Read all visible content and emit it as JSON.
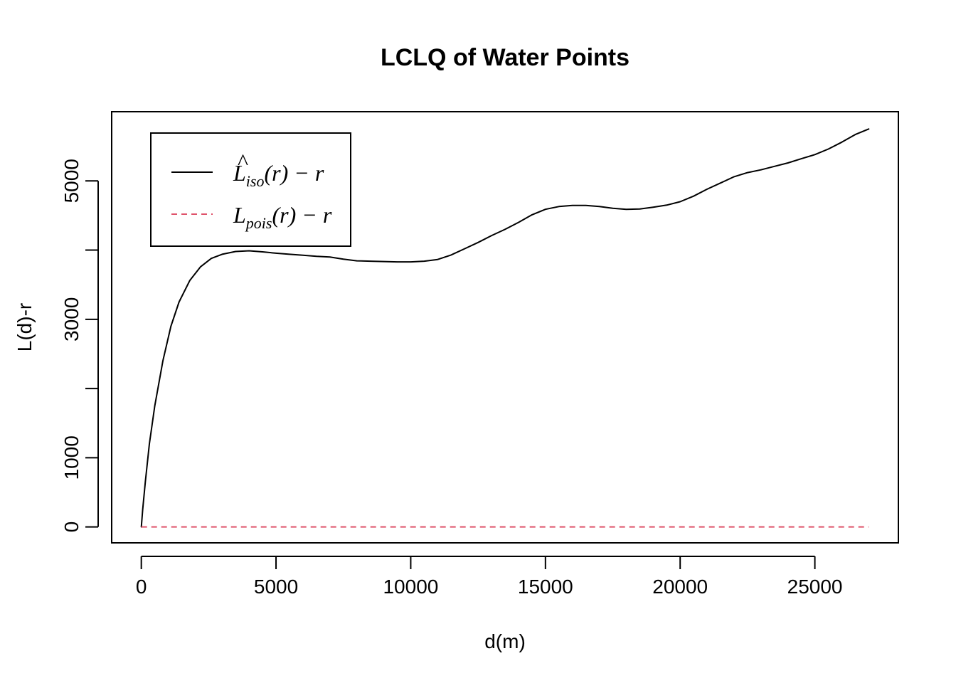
{
  "chart_data": {
    "type": "line",
    "title": "LCLQ of Water Points",
    "xlabel": "d(m)",
    "ylabel": "L(d)-r",
    "xlim": [
      -1100,
      28100
    ],
    "ylim": [
      -230,
      6000
    ],
    "xticks": [
      0,
      5000,
      10000,
      15000,
      20000,
      25000
    ],
    "xtick_labels": [
      "0",
      "5000",
      "10000",
      "15000",
      "20000",
      "25000"
    ],
    "yticks": [
      0,
      1000,
      2000,
      3000,
      4000,
      5000
    ],
    "ytick_labels": [
      "0",
      "1000",
      "",
      "3000",
      "",
      "5000"
    ],
    "grid": false,
    "legend": {
      "placement": "top-left",
      "entries": [
        {
          "base": "L",
          "hat": "^",
          "sub": "iso",
          "suffix": "(r) − r",
          "color": "#000000",
          "dash": "solid"
        },
        {
          "base": "L",
          "hat": "",
          "sub": "pois",
          "suffix": "(r) − r",
          "color": "#DF536B",
          "dash": "dashed"
        }
      ]
    },
    "series": [
      {
        "name": "L_iso(r) - r",
        "color": "#000000",
        "dash": "solid",
        "x": [
          0,
          50,
          150,
          300,
          500,
          800,
          1100,
          1400,
          1800,
          2200,
          2600,
          3000,
          3500,
          4000,
          4500,
          5000,
          5500,
          6000,
          6500,
          7000,
          7500,
          8000,
          8500,
          9000,
          9500,
          10000,
          10500,
          11000,
          11500,
          12000,
          12500,
          13000,
          13500,
          14000,
          14500,
          15000,
          15500,
          16000,
          16500,
          17000,
          17500,
          18000,
          18500,
          19000,
          19500,
          20000,
          20500,
          21000,
          21500,
          22000,
          22500,
          23000,
          23500,
          24000,
          24500,
          25000,
          25500,
          26000,
          26500,
          27000
        ],
        "y": [
          0,
          250,
          650,
          1200,
          1750,
          2400,
          2900,
          3250,
          3560,
          3760,
          3880,
          3940,
          3980,
          3990,
          3975,
          3955,
          3940,
          3925,
          3910,
          3900,
          3870,
          3845,
          3840,
          3835,
          3830,
          3830,
          3840,
          3865,
          3930,
          4020,
          4110,
          4210,
          4300,
          4400,
          4510,
          4590,
          4630,
          4645,
          4645,
          4630,
          4605,
          4590,
          4595,
          4620,
          4650,
          4700,
          4780,
          4880,
          4970,
          5060,
          5120,
          5160,
          5210,
          5260,
          5320,
          5380,
          5460,
          5560,
          5670,
          5750
        ]
      },
      {
        "name": "L_pois(r) - r",
        "color": "#DF536B",
        "dash": "dashed",
        "x": [
          0,
          27000
        ],
        "y": [
          0,
          0
        ]
      }
    ]
  }
}
